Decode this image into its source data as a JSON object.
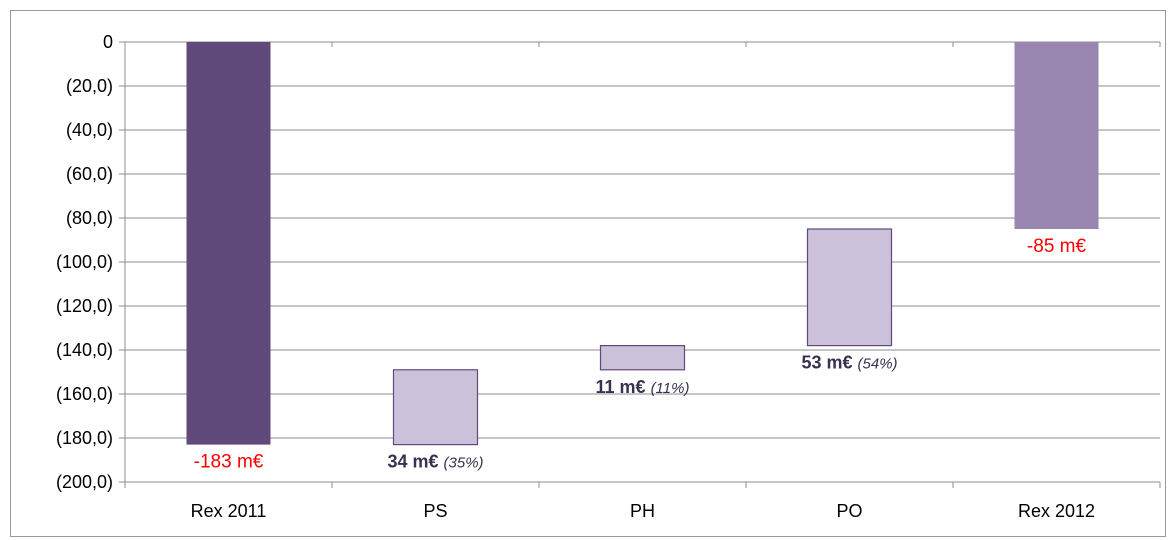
{
  "chart_data": {
    "type": "bar",
    "subtype": "waterfall",
    "categories": [
      "Rex 2011",
      "PS",
      "PH",
      "PO",
      "Rex 2012"
    ],
    "bars": [
      {
        "category": "Rex 2011",
        "start": 0,
        "end": -183,
        "label": "-183 m€",
        "pct_label": "",
        "label_style": "red",
        "color": "#604a7b"
      },
      {
        "category": "PS",
        "start": -183,
        "end": -149,
        "label": "34 m€",
        "pct_label": "(35%)",
        "label_style": "bold",
        "color": "#ccc1da"
      },
      {
        "category": "PH",
        "start": -149,
        "end": -138,
        "label": "11 m€",
        "pct_label": "(11%)",
        "label_style": "bold",
        "color": "#ccc1da"
      },
      {
        "category": "PO",
        "start": -138,
        "end": -85,
        "label": "53 m€",
        "pct_label": "(54%)",
        "label_style": "bold",
        "color": "#ccc1da"
      },
      {
        "category": "Rex 2012",
        "start": 0,
        "end": -85,
        "label": "-85 m€",
        "pct_label": "",
        "label_style": "red",
        "color": "#9886b0"
      }
    ],
    "ylim": [
      -200,
      0
    ],
    "yticks": [
      0,
      -20,
      -40,
      -60,
      -80,
      -100,
      -120,
      -140,
      -160,
      -180,
      -200
    ],
    "ytick_labels": [
      "0",
      "(20,0)",
      "(40,0)",
      "(60,0)",
      "(80,0)",
      "(100,0)",
      "(120,0)",
      "(140,0)",
      "(160,0)",
      "(180,0)",
      "(200,0)"
    ],
    "grid": true,
    "legend": "none",
    "title": "",
    "xlabel": "",
    "ylabel": ""
  },
  "colors": {
    "gridline": "#8c8c8c",
    "bar_edge": "#604a7b",
    "label_red": "#ff0000",
    "label_dark": "#3b3050"
  }
}
